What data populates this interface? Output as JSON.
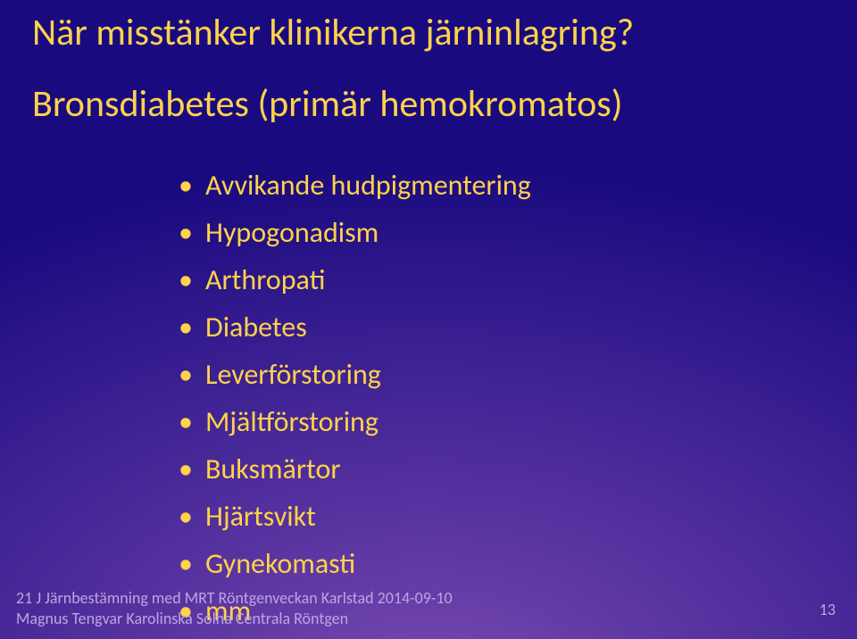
{
  "colors": {
    "bg_top": "#1a0a80",
    "bg_bottom": "#7a4ab2",
    "title": "#ffd24a",
    "subtitle": "#ffd24a",
    "bullet_text": "#ffd24a",
    "footer": "#bca6e0",
    "pagenum": "#bca6e0"
  },
  "title": "När misstänker klinikerna järninlagring?",
  "subtitle": "Bronsdiabetes  (primär hemokromatos)",
  "bullets": [
    "Avvikande hudpigmentering",
    "Hypogonadism",
    "Arthropati",
    "Diabetes",
    "Leverförstoring",
    "Mjältförstoring",
    "Buksmärtor",
    "Hjärtsvikt",
    "Gynekomasti",
    "mm"
  ],
  "footer": {
    "line1": "21 J Järnbestämning med MRT Röntgenveckan Karlstad 2014-09-10",
    "line2": "Magnus Tengvar Karolinska Solna Centrala Röntgen"
  },
  "page_number": "13"
}
